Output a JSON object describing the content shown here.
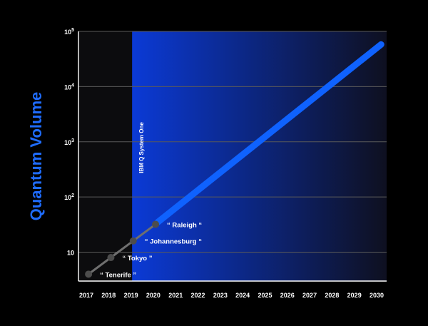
{
  "colors": {
    "background": "#000000",
    "plot_area": "#0c0c0e",
    "highlight_start": "#0b3ad6",
    "highlight_end": "#0e1020",
    "projection": "#0f62fe",
    "history_line": "#6f6f6f",
    "history_marker": "#4d4d4d",
    "gridline": "#5a5a5a",
    "axis": "#ffffff",
    "ylabel": "#1f6cff",
    "text": "#ffffff"
  },
  "chart_data": {
    "type": "line",
    "title": "",
    "xlabel": "",
    "ylabel": "Quantum Volume",
    "x_ticks": [
      "2017",
      "2018",
      "2019",
      "2020",
      "2021",
      "2022",
      "2023",
      "2024",
      "2025",
      "2026",
      "2027",
      "2028",
      "2029",
      "2030"
    ],
    "y_ticks": [
      {
        "base": "10",
        "exp": "",
        "value": 10
      },
      {
        "base": "10",
        "exp": "2",
        "value": 100
      },
      {
        "base": "10",
        "exp": "3",
        "value": 1000
      },
      {
        "base": "10",
        "exp": "4",
        "value": 10000
      },
      {
        "base": "10",
        "exp": "5",
        "value": 100000
      }
    ],
    "y_scale": "log",
    "xlim": [
      2016.6,
      2030.4
    ],
    "ylim": [
      3,
      100000
    ],
    "grid": "horizontal",
    "highlight_region": {
      "label": "IBM Q System One",
      "x_start": 2019.05,
      "x_end": 2030.4
    },
    "series": [
      {
        "style": "markers",
        "points": [
          {
            "x": 2017.1,
            "y": 4,
            "label": "“ Tenerife ”"
          },
          {
            "x": 2018.1,
            "y": 8,
            "label": "“ Tokyo ”"
          },
          {
            "x": 2019.1,
            "y": 16,
            "label": "“ Johannesburg “"
          },
          {
            "x": 2020.1,
            "y": 32,
            "label": "“ Raleigh “"
          }
        ]
      },
      {
        "style": "projection",
        "points": [
          {
            "x": 2020.2,
            "y": 35
          },
          {
            "x": 2030.2,
            "y": 58000
          }
        ]
      }
    ]
  }
}
